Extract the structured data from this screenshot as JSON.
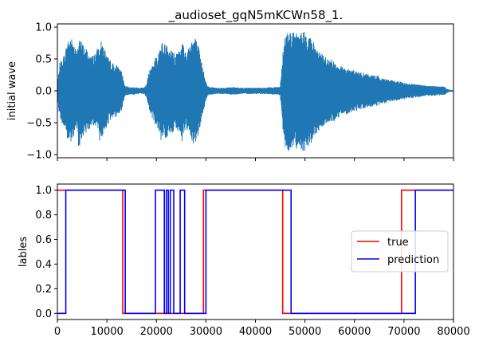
{
  "chart_data": [
    {
      "type": "line",
      "title": "_audioset_gqN5mKCWn58_1.",
      "xlabel": "",
      "ylabel": "initial wave",
      "xlim": [
        0,
        80000
      ],
      "ylim": [
        -1.05,
        1.05
      ],
      "yticks": [
        -1.0,
        -0.5,
        0.0,
        0.5,
        1.0
      ],
      "ytick_labels": [
        "−1.0",
        "−0.5",
        "0.0",
        "0.5",
        "1.0"
      ],
      "xticks": [
        0,
        10000,
        20000,
        30000,
        40000,
        50000,
        60000,
        70000,
        80000
      ],
      "xtick_labels_visible": false,
      "series": [
        {
          "color": "#1f77b4",
          "envelope": {
            "x": [
              0,
              500,
              1500,
              2200,
              3000,
              4000,
              4300,
              5000,
              6000,
              7000,
              8000,
              8600,
              9400,
              10000,
              11000,
              12000,
              12800,
              13200,
              13600,
              14500,
              15500,
              16500,
              17500,
              18000,
              18500,
              19500,
              20500,
              21000,
              21500,
              22000,
              22600,
              23200,
              23800,
              24500,
              25200,
              26000,
              27000,
              27800,
              28500,
              29000,
              29600,
              30100,
              30600,
              31300,
              32000,
              33000,
              34000,
              35000,
              36000,
              37000,
              38000,
              39000,
              40000,
              41000,
              42000,
              43000,
              44000,
              45000,
              45600,
              46000,
              47000,
              48000,
              49000,
              50000,
              51000,
              52000,
              53000,
              54000,
              55000,
              56000,
              57000,
              58000,
              59000,
              60000,
              61000,
              62000,
              63000,
              64000,
              65000,
              66000,
              67000,
              68000,
              69000,
              70000,
              71000,
              72000,
              73000,
              74000,
              75000,
              76000,
              77000,
              78000,
              78500,
              79000,
              80000
            ],
            "amp": [
              0.1,
              0.45,
              0.6,
              0.85,
              0.82,
              0.6,
              0.9,
              0.75,
              0.65,
              0.55,
              0.65,
              0.8,
              0.72,
              0.55,
              0.45,
              0.4,
              0.35,
              0.25,
              0.08,
              0.06,
              0.06,
              0.05,
              0.05,
              0.1,
              0.3,
              0.5,
              0.62,
              0.8,
              0.7,
              0.85,
              0.65,
              0.7,
              0.55,
              0.72,
              0.8,
              0.6,
              0.82,
              0.86,
              0.7,
              0.5,
              0.3,
              0.12,
              0.06,
              0.06,
              0.05,
              0.05,
              0.05,
              0.06,
              0.06,
              0.05,
              0.05,
              0.05,
              0.05,
              0.05,
              0.05,
              0.06,
              0.06,
              0.07,
              0.7,
              0.92,
              0.95,
              0.9,
              0.92,
              0.95,
              0.85,
              0.75,
              0.6,
              0.55,
              0.5,
              0.48,
              0.4,
              0.38,
              0.35,
              0.32,
              0.3,
              0.28,
              0.26,
              0.25,
              0.23,
              0.2,
              0.18,
              0.16,
              0.15,
              0.13,
              0.12,
              0.11,
              0.1,
              0.09,
              0.08,
              0.08,
              0.07,
              0.07,
              0.05,
              0.02,
              0.01
            ]
          }
        }
      ]
    },
    {
      "type": "line",
      "title": "",
      "xlabel": "",
      "ylabel": "lables",
      "xlim": [
        0,
        80000
      ],
      "ylim": [
        -0.05,
        1.05
      ],
      "yticks": [
        0.0,
        0.2,
        0.4,
        0.6,
        0.8,
        1.0
      ],
      "ytick_labels": [
        "0.0",
        "0.2",
        "0.4",
        "0.6",
        "0.8",
        "1.0"
      ],
      "xticks": [
        0,
        10000,
        20000,
        30000,
        40000,
        50000,
        60000,
        70000,
        80000
      ],
      "xtick_labels": [
        "0",
        "10000",
        "20000",
        "30000",
        "40000",
        "50000",
        "60000",
        "70000",
        "80000"
      ],
      "legend": {
        "placement": "center-right",
        "entries": [
          "true",
          "prediction"
        ]
      },
      "series": [
        {
          "name": "true",
          "color": "#ff0000",
          "x": [
            0,
            13200,
            13200,
            29500,
            29500,
            45500,
            45500,
            69500,
            69500,
            80000
          ],
          "y": [
            1,
            1,
            0,
            0,
            1,
            1,
            0,
            0,
            1,
            1
          ]
        },
        {
          "name": "prediction",
          "color": "#0000ff",
          "x": [
            0,
            1700,
            1700,
            13700,
            13700,
            19800,
            19800,
            21600,
            21600,
            22000,
            22000,
            22400,
            22400,
            22800,
            22800,
            23500,
            23500,
            24800,
            24800,
            25700,
            25700,
            30000,
            30000,
            47200,
            47200,
            72300,
            72300,
            80000
          ],
          "y": [
            0,
            0,
            1,
            1,
            0,
            0,
            1,
            1,
            0,
            0,
            1,
            1,
            0,
            0,
            1,
            1,
            0,
            0,
            1,
            1,
            0,
            0,
            1,
            1,
            0,
            0,
            1,
            1
          ]
        }
      ]
    }
  ]
}
